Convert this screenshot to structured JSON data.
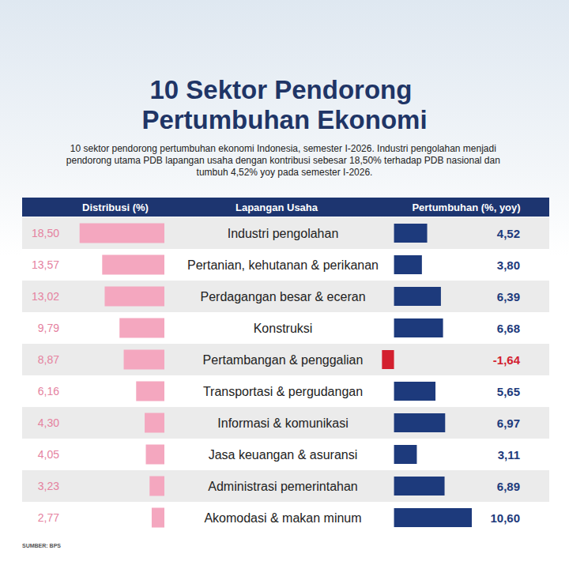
{
  "chart_data": [
    {
      "type": "bar",
      "orientation": "horizontal",
      "title": "10 Sektor Pendorong Pertumbuhan Ekonomi",
      "subtitle": "10 sektor pendorong pertumbuhan ekonomi Indonesia, semester I-2026. Industri pengolahan menjadi pendorong utama PDB lapangan usaha dengan kontribusi sebesar 18,50% terhadap PDB nasional dan tumbuh 4,52% yoy pada semester I-2026.",
      "xlabel": "Distribusi (%)",
      "ylabel": "Lapangan Usaha",
      "annotations": [
        "SUMBER: BPS"
      ],
      "categories": [
        "Industri pengolahan",
        "Pertanian, kehutanan & perikanan",
        "Perdagangan besar & eceran",
        "Konstruksi",
        "Pertambangan & penggalian",
        "Transportasi & pergudangan",
        "Informasi & komunikasi",
        "Jasa keuangan & asuransi",
        "Administrasi pemerintahan",
        "Akomodasi & makan minum"
      ],
      "values": [
        18.5,
        13.57,
        13.02,
        9.79,
        8.87,
        6.16,
        4.3,
        4.05,
        3.23,
        2.77
      ],
      "value_labels": [
        "18,50",
        "13,57",
        "13,02",
        "9,79",
        "8,87",
        "6,16",
        "4,30",
        "4,05",
        "3,23",
        "2,77"
      ],
      "color": "#f4a7bf",
      "xlim": [
        0,
        20
      ],
      "xticks": [
        0,
        5,
        10,
        15,
        20
      ],
      "grid": false,
      "data_labels": true,
      "tick_labels": "y"
    },
    {
      "type": "bar",
      "orientation": "horizontal",
      "xlabel": "Pertumbuhan (%, yoy)",
      "categories": [
        "Industri pengolahan",
        "Pertanian, kehutanan & perikanan",
        "Perdagangan besar & eceran",
        "Konstruksi",
        "Pertambangan & penggalian",
        "Transportasi & pergudangan",
        "Informasi & komunikasi",
        "Jasa keuangan & asuransi",
        "Administrasi pemerintahan",
        "Akomodasi & makan minum"
      ],
      "values": [
        4.52,
        3.8,
        6.39,
        6.68,
        -1.64,
        5.65,
        6.97,
        3.11,
        6.89,
        10.6
      ],
      "value_labels": [
        "4,52",
        "3,80",
        "6,39",
        "6,68",
        "-1,64",
        "5,65",
        "6,97",
        "3,11",
        "6,89",
        "10,60"
      ],
      "colors": [
        "#1d3a7c",
        "#1d3a7c",
        "#1d3a7c",
        "#1d3a7c",
        "#d3202f",
        "#1d3a7c",
        "#1d3a7c",
        "#1d3a7c",
        "#1d3a7c",
        "#1d3a7c"
      ],
      "xlim": [
        -2,
        12
      ],
      "xticks": [
        -2,
        0,
        2,
        4,
        6,
        8,
        10,
        12
      ],
      "grid": false,
      "data_labels": true,
      "tick_labels": false
    }
  ]
}
